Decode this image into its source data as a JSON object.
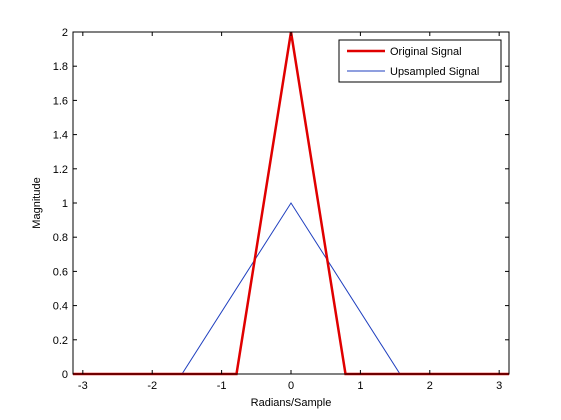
{
  "chart_data": {
    "type": "line",
    "xlabel": "Radians/Sample",
    "ylabel": "Magnitude",
    "xlim": [
      -3.14159,
      3.14159
    ],
    "ylim": [
      0,
      2
    ],
    "xticks": [
      -3,
      -2,
      -1,
      0,
      1,
      2,
      3
    ],
    "yticks": [
      0,
      0.2,
      0.4,
      0.6,
      0.8,
      1,
      1.2,
      1.4,
      1.6,
      1.8,
      2
    ],
    "grid": false,
    "legend_position": "top-right",
    "series": [
      {
        "name": "Original Signal",
        "color": "#e00000",
        "x": [
          -3.14159,
          -0.785,
          0,
          0.785,
          3.14159
        ],
        "y": [
          0,
          0,
          2,
          0,
          0
        ]
      },
      {
        "name": "Upsampled Signal",
        "color": "#1f3fbf",
        "x": [
          -3.14159,
          -1.5708,
          0,
          1.5708,
          3.14159
        ],
        "y": [
          0,
          0,
          1,
          0,
          0
        ]
      }
    ]
  }
}
